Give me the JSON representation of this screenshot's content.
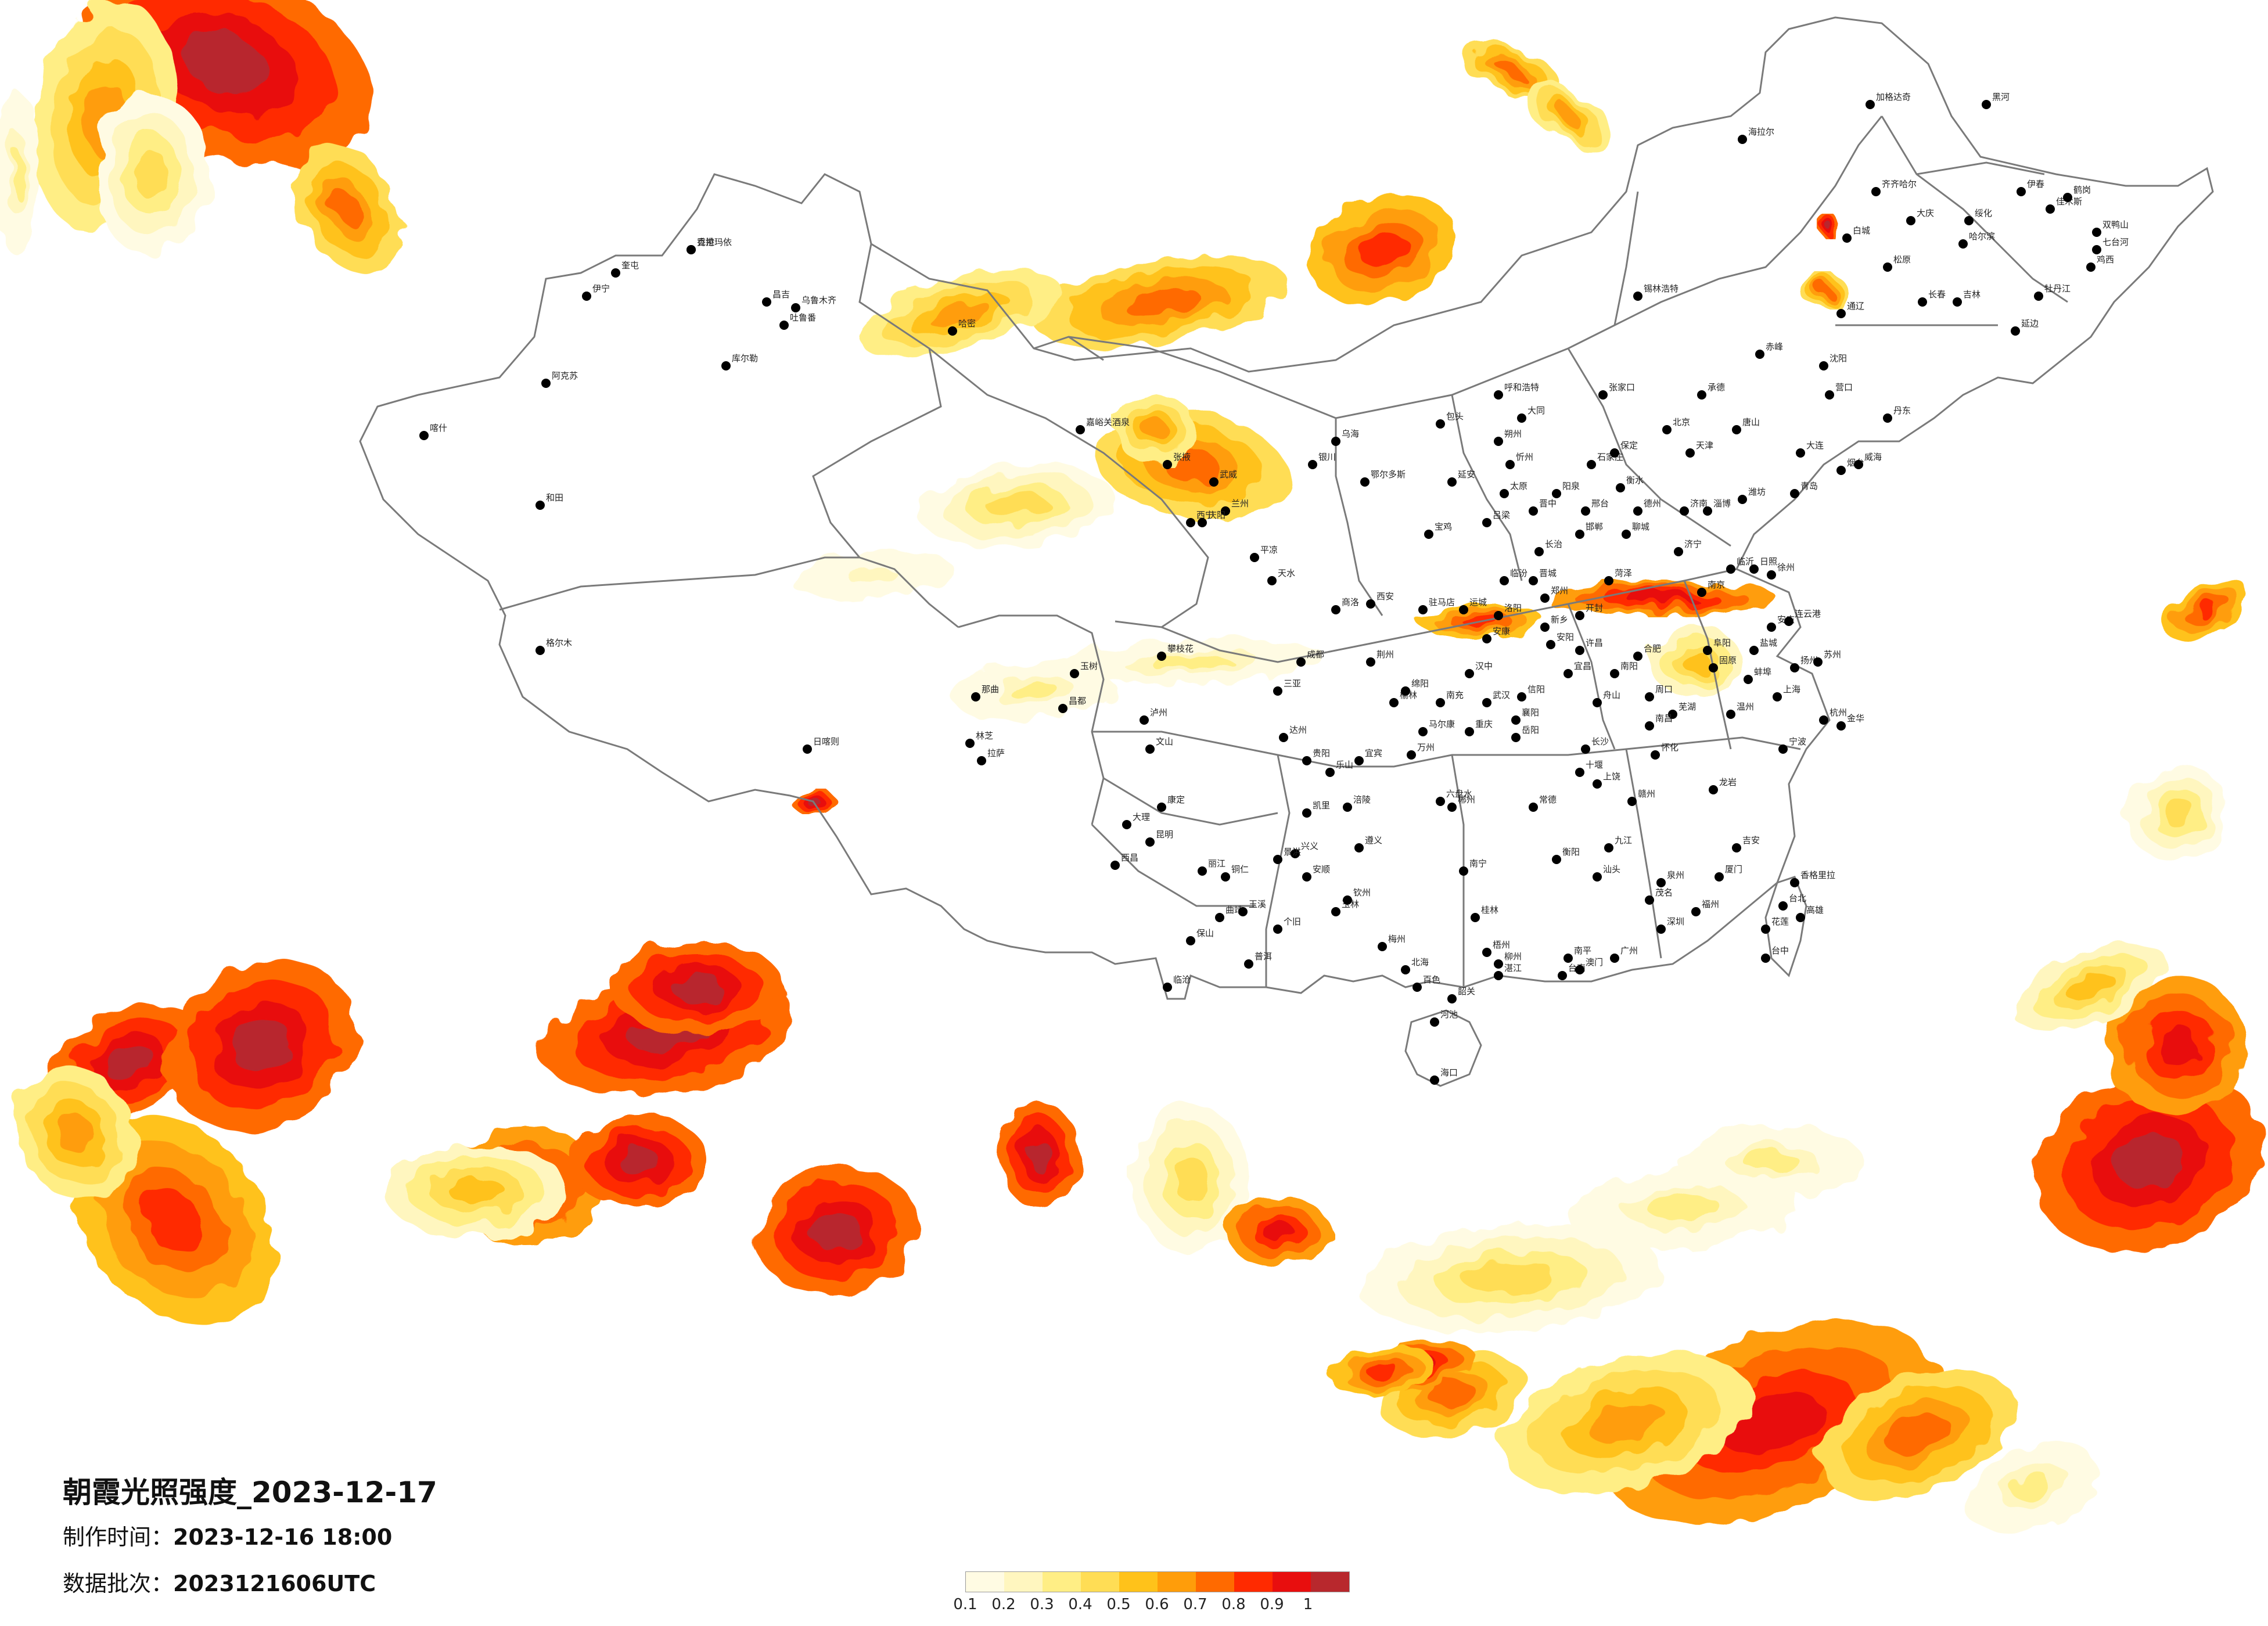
{
  "map": {
    "title": "朝霞光照强度_2023-12-17",
    "production_time_label": "制作时间：",
    "production_time": "2023-12-16 18:00",
    "data_batch_label": "数据批次：",
    "data_batch": "2023121606UTC"
  },
  "legend": {
    "ticks": [
      "0.1",
      "0.2",
      "0.3",
      "0.4",
      "0.5",
      "0.6",
      "0.7",
      "0.8",
      "0.9",
      "1"
    ],
    "colors": [
      "#fffbe3",
      "#fff6bf",
      "#ffee85",
      "#ffdd55",
      "#ffc21a",
      "#ff9d0a",
      "#ff6a00",
      "#ff2a00",
      "#e80e0e",
      "#b8282d"
    ]
  },
  "cities": [
    {
      "name": "克拉玛依"
    },
    {
      "name": "奎屯"
    },
    {
      "name": "伊宁"
    },
    {
      "name": "昌吉"
    },
    {
      "name": "乌鲁木齐"
    },
    {
      "name": "吐鲁番"
    },
    {
      "name": "哈密"
    },
    {
      "name": "库尔勒"
    },
    {
      "name": "阿克苏"
    },
    {
      "name": "喀什"
    },
    {
      "name": "和田"
    },
    {
      "name": "格尔木"
    },
    {
      "name": "嘉峪关酒泉"
    },
    {
      "name": "张掖"
    },
    {
      "name": "武威"
    },
    {
      "name": "西宁"
    },
    {
      "name": "兰州"
    },
    {
      "name": "拉萨"
    },
    {
      "name": "日喀则"
    },
    {
      "name": "林芝"
    },
    {
      "name": "那曲"
    },
    {
      "name": "昌都"
    },
    {
      "name": "玉树"
    },
    {
      "name": "呼和浩特"
    },
    {
      "name": "包头"
    },
    {
      "name": "银川"
    },
    {
      "name": "乌海"
    },
    {
      "name": "鄂尔多斯"
    },
    {
      "name": "海拉尔"
    },
    {
      "name": "加格达奇"
    },
    {
      "name": "黑河"
    },
    {
      "name": "齐齐哈尔"
    },
    {
      "name": "大庆"
    },
    {
      "name": "哈尔滨"
    },
    {
      "name": "伊春"
    },
    {
      "name": "佳木斯"
    },
    {
      "name": "鹤岗"
    },
    {
      "name": "双鸭山"
    },
    {
      "name": "七台河"
    },
    {
      "name": "鸡西"
    },
    {
      "name": "牡丹江"
    },
    {
      "name": "绥化"
    },
    {
      "name": "白城"
    },
    {
      "name": "松原"
    },
    {
      "name": "长春"
    },
    {
      "name": "吉林"
    },
    {
      "name": "延边"
    },
    {
      "name": "通辽"
    },
    {
      "name": "锡林浩特"
    },
    {
      "name": "赤峰"
    },
    {
      "name": "沈阳"
    },
    {
      "name": "大连"
    },
    {
      "name": "丹东"
    },
    {
      "name": "营口"
    },
    {
      "name": "北京"
    },
    {
      "name": "天津"
    },
    {
      "name": "张家口"
    },
    {
      "name": "承德"
    },
    {
      "name": "唐山"
    },
    {
      "name": "石家庄"
    },
    {
      "name": "保定"
    },
    {
      "name": "衡水"
    },
    {
      "name": "邢台"
    },
    {
      "name": "邯郸"
    },
    {
      "name": "太原"
    },
    {
      "name": "大同"
    },
    {
      "name": "朔州"
    },
    {
      "name": "忻州"
    },
    {
      "name": "阳泉"
    },
    {
      "name": "晋中"
    },
    {
      "name": "长治"
    },
    {
      "name": "晋城"
    },
    {
      "name": "临汾"
    },
    {
      "name": "运城"
    },
    {
      "name": "吕梁"
    },
    {
      "name": "济南"
    },
    {
      "name": "青岛"
    },
    {
      "name": "烟台"
    },
    {
      "name": "威海"
    },
    {
      "name": "潍坊"
    },
    {
      "name": "淄博"
    },
    {
      "name": "济宁"
    },
    {
      "name": "临沂"
    },
    {
      "name": "日照"
    },
    {
      "name": "德州"
    },
    {
      "name": "聊城"
    },
    {
      "name": "菏泽"
    },
    {
      "name": "郑州"
    },
    {
      "name": "开封"
    },
    {
      "name": "洛阳"
    },
    {
      "name": "新乡"
    },
    {
      "name": "安阳"
    },
    {
      "name": "许昌"
    },
    {
      "name": "周口"
    },
    {
      "name": "信阳"
    },
    {
      "name": "南阳"
    },
    {
      "name": "驻马店"
    },
    {
      "name": "西安"
    },
    {
      "name": "宝鸡"
    },
    {
      "name": "延安"
    },
    {
      "name": "榆林"
    },
    {
      "name": "汉中"
    },
    {
      "name": "安康"
    },
    {
      "name": "商洛"
    },
    {
      "name": "天水"
    },
    {
      "name": "平凉"
    },
    {
      "name": "庆阳"
    },
    {
      "name": "固原"
    },
    {
      "name": "合肥"
    },
    {
      "name": "阜阳"
    },
    {
      "name": "蚌埠"
    },
    {
      "name": "芜湖"
    },
    {
      "name": "安庆"
    },
    {
      "name": "南京"
    },
    {
      "name": "徐州"
    },
    {
      "name": "连云港"
    },
    {
      "name": "盐城"
    },
    {
      "name": "扬州"
    },
    {
      "name": "苏州"
    },
    {
      "name": "上海"
    },
    {
      "name": "杭州"
    },
    {
      "name": "宁波"
    },
    {
      "name": "温州"
    },
    {
      "name": "金华"
    },
    {
      "name": "舟山"
    },
    {
      "name": "武汉"
    },
    {
      "name": "宜昌"
    },
    {
      "name": "襄阳"
    },
    {
      "name": "荆州"
    },
    {
      "name": "十堰"
    },
    {
      "name": "长沙"
    },
    {
      "name": "岳阳"
    },
    {
      "name": "常德"
    },
    {
      "name": "衡阳"
    },
    {
      "name": "郴州"
    },
    {
      "name": "怀化"
    },
    {
      "name": "南昌"
    },
    {
      "name": "九江"
    },
    {
      "name": "赣州"
    },
    {
      "name": "上饶"
    },
    {
      "name": "吉安"
    },
    {
      "name": "福州"
    },
    {
      "name": "厦门"
    },
    {
      "name": "泉州"
    },
    {
      "name": "龙岩"
    },
    {
      "name": "南平"
    },
    {
      "name": "广州"
    },
    {
      "name": "深圳"
    },
    {
      "name": "汕头"
    },
    {
      "name": "韶关"
    },
    {
      "name": "湛江"
    },
    {
      "name": "茂名"
    },
    {
      "name": "梅州"
    },
    {
      "name": "南宁"
    },
    {
      "name": "桂林"
    },
    {
      "name": "柳州"
    },
    {
      "name": "梧州"
    },
    {
      "name": "玉林"
    },
    {
      "name": "百色"
    },
    {
      "name": "北海"
    },
    {
      "name": "钦州"
    },
    {
      "name": "河池"
    },
    {
      "name": "海口"
    },
    {
      "name": "三亚"
    },
    {
      "name": "成都"
    },
    {
      "name": "绵阳"
    },
    {
      "name": "南充"
    },
    {
      "name": "达州"
    },
    {
      "name": "乐山"
    },
    {
      "name": "宜宾"
    },
    {
      "name": "泸州"
    },
    {
      "name": "康定"
    },
    {
      "name": "西昌"
    },
    {
      "name": "攀枝花"
    },
    {
      "name": "马尔康"
    },
    {
      "name": "重庆"
    },
    {
      "name": "万州"
    },
    {
      "name": "涪陵"
    },
    {
      "name": "贵阳"
    },
    {
      "name": "遵义"
    },
    {
      "name": "凯里"
    },
    {
      "name": "安顺"
    },
    {
      "name": "兴义"
    },
    {
      "name": "六盘水"
    },
    {
      "name": "铜仁"
    },
    {
      "name": "昆明"
    },
    {
      "name": "大理"
    },
    {
      "name": "丽江"
    },
    {
      "name": "保山"
    },
    {
      "name": "临沧"
    },
    {
      "name": "普洱"
    },
    {
      "name": "景洪"
    },
    {
      "name": "曲靖"
    },
    {
      "name": "玉溪"
    },
    {
      "name": "个旧"
    },
    {
      "name": "文山"
    },
    {
      "name": "香格里拉"
    },
    {
      "name": "台北"
    },
    {
      "name": "台中"
    },
    {
      "name": "高雄"
    },
    {
      "name": "花莲"
    },
    {
      "name": "台南"
    },
    {
      "name": "澳门"
    },
    {
      "name": "香港"
    }
  ]
}
